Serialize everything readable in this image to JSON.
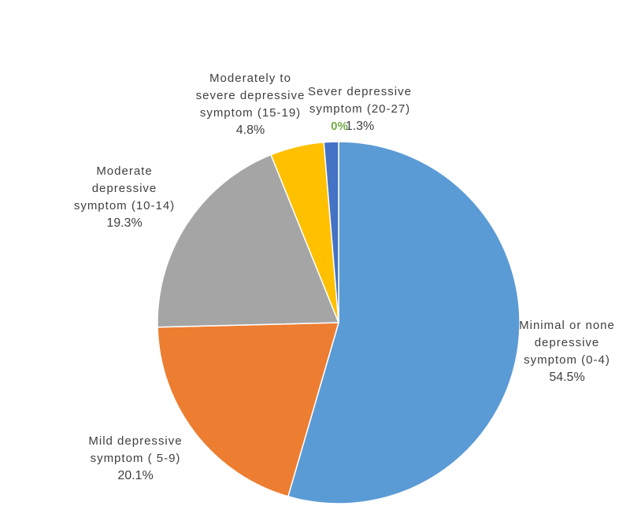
{
  "chart_data": {
    "type": "pie",
    "title": "",
    "slices": [
      {
        "label_lines": [
          "Minimal or none",
          "depressive",
          "symptom (0-4)"
        ],
        "value": 54.5,
        "value_label": "54.5%",
        "color": "#5b9bd5"
      },
      {
        "label_lines": [
          "Mild depressive",
          "symptom ( 5-9)"
        ],
        "value": 20.1,
        "value_label": "20.1%",
        "color": "#ed7d31"
      },
      {
        "label_lines": [
          "Moderate",
          "depressive",
          "symptom (10-14)"
        ],
        "value": 19.3,
        "value_label": "19.3%",
        "color": "#a5a5a5"
      },
      {
        "label_lines": [
          "Moderately to",
          "severe depressive",
          "symptom (15-19)"
        ],
        "value": 4.8,
        "value_label": "4.8%",
        "color": "#ffc000"
      },
      {
        "label_lines": [
          "Sever depressive",
          "symptom (20-27)"
        ],
        "value": 1.3,
        "value_label": "1.3%",
        "color": "#4472c4"
      }
    ],
    "stray_text": "0%",
    "legend": "none",
    "start": "top",
    "direction": "clockwise"
  }
}
